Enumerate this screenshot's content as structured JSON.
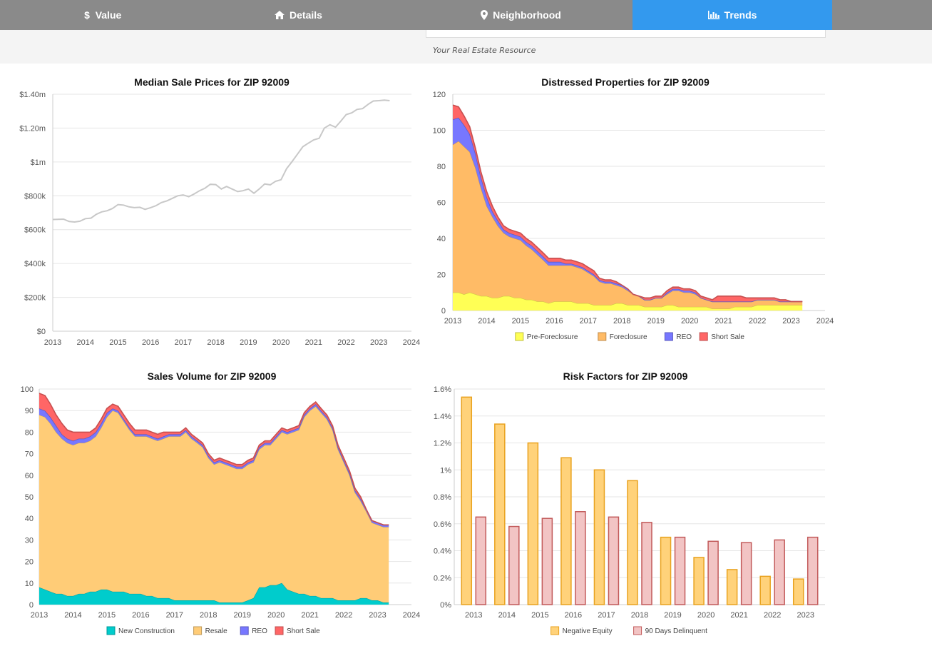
{
  "nav": {
    "tabs": [
      {
        "label": "Value",
        "icon": "dollar-icon"
      },
      {
        "label": "Details",
        "icon": "home-icon"
      },
      {
        "label": "Neighborhood",
        "icon": "map-pin-icon"
      },
      {
        "label": "Trends",
        "icon": "bar-chart-icon",
        "active": true
      }
    ]
  },
  "header": {
    "tagline": "Your Real Estate Resource"
  },
  "colors": {
    "tab_bar": "#8a8a8a",
    "tab_active": "#3399ee",
    "new_construction": "#00cccc",
    "resale": "#ffcc77",
    "reo": "#3333ee",
    "short_sale": "#ee1111",
    "pre_foreclosure": "#ffff55",
    "foreclosure": "#ffbb66",
    "negative_equity": "#ffd27a",
    "delinquent": "#f2c4c4"
  },
  "chart_data": [
    {
      "id": "median",
      "type": "line",
      "title": "Median Sale Prices for ZIP 92009",
      "xlabels": [
        "2013",
        "2014",
        "2015",
        "2016",
        "2017",
        "2018",
        "2019",
        "2020",
        "2021",
        "2022",
        "2023",
        "2024"
      ],
      "ylabels": [
        "$0",
        "$200k",
        "$400k",
        "$600k",
        "$800k",
        "$1m",
        "$1.20m",
        "$1.40m"
      ],
      "xlim": [
        2013,
        2024
      ],
      "ylim": [
        0,
        1400000
      ],
      "grid": true,
      "series": [
        {
          "color": "#c8c8c8",
          "x": [
            2013.0,
            2013.33,
            2013.5,
            2013.67,
            2013.83,
            2014.0,
            2014.17,
            2014.33,
            2014.5,
            2014.67,
            2014.83,
            2015.0,
            2015.17,
            2015.33,
            2015.5,
            2015.67,
            2015.83,
            2016.0,
            2016.17,
            2016.33,
            2016.5,
            2016.67,
            2016.83,
            2017.0,
            2017.17,
            2017.33,
            2017.5,
            2017.67,
            2017.83,
            2018.0,
            2018.17,
            2018.33,
            2018.5,
            2018.67,
            2018.83,
            2019.0,
            2019.17,
            2019.33,
            2019.5,
            2019.67,
            2019.83,
            2020.0,
            2020.17,
            2020.33,
            2020.5,
            2020.67,
            2020.83,
            2021.0,
            2021.17,
            2021.33,
            2021.5,
            2021.67,
            2021.83,
            2022.0,
            2022.17,
            2022.33,
            2022.5,
            2022.67,
            2022.83,
            2023.0,
            2023.17,
            2023.33
          ],
          "y": [
            660000,
            662000,
            648000,
            645000,
            650000,
            665000,
            668000,
            690000,
            705000,
            712000,
            725000,
            748000,
            745000,
            735000,
            730000,
            732000,
            720000,
            730000,
            742000,
            760000,
            770000,
            785000,
            800000,
            805000,
            795000,
            810000,
            830000,
            845000,
            868000,
            866000,
            840000,
            855000,
            840000,
            825000,
            830000,
            840000,
            815000,
            840000,
            870000,
            865000,
            885000,
            895000,
            960000,
            1000000,
            1045000,
            1090000,
            1110000,
            1130000,
            1140000,
            1200000,
            1220000,
            1205000,
            1240000,
            1280000,
            1290000,
            1310000,
            1315000,
            1340000,
            1360000,
            1362000,
            1365000,
            1362000
          ]
        }
      ]
    },
    {
      "id": "distressed",
      "type": "area",
      "title": "Distressed Properties for ZIP 92009",
      "xlabels": [
        "2013",
        "2014",
        "2015",
        "2016",
        "2017",
        "2018",
        "2019",
        "2020",
        "2021",
        "2022",
        "2023",
        "2024"
      ],
      "ylabels": [
        "0",
        "20",
        "40",
        "60",
        "80",
        "100",
        "120"
      ],
      "xlim": [
        2013,
        2024
      ],
      "ylim": [
        0,
        120
      ],
      "grid": true,
      "legend": "bottom",
      "x": [
        2013.0,
        2013.17,
        2013.33,
        2013.5,
        2013.67,
        2013.83,
        2014.0,
        2014.17,
        2014.33,
        2014.5,
        2014.67,
        2014.83,
        2015.0,
        2015.17,
        2015.33,
        2015.5,
        2015.67,
        2015.83,
        2016.0,
        2016.17,
        2016.33,
        2016.5,
        2016.67,
        2016.83,
        2017.0,
        2017.17,
        2017.33,
        2017.5,
        2017.67,
        2017.83,
        2018.0,
        2018.17,
        2018.33,
        2018.5,
        2018.67,
        2018.83,
        2019.0,
        2019.17,
        2019.33,
        2019.5,
        2019.67,
        2019.83,
        2020.0,
        2020.17,
        2020.33,
        2020.5,
        2020.67,
        2020.83,
        2021.0,
        2021.17,
        2021.33,
        2021.5,
        2021.67,
        2021.83,
        2022.0,
        2022.17,
        2022.33,
        2022.5,
        2022.67,
        2022.83,
        2023.0,
        2023.17,
        2023.33
      ],
      "series": [
        {
          "name": "Pre-Foreclosure",
          "color": "#ffff55",
          "values": [
            10,
            10,
            9,
            10,
            9,
            8,
            8,
            7,
            7,
            8,
            8,
            7,
            7,
            6,
            6,
            5,
            5,
            4,
            5,
            5,
            5,
            5,
            4,
            4,
            4,
            3,
            3,
            3,
            3,
            4,
            4,
            3,
            3,
            3,
            2,
            2,
            2,
            2,
            3,
            3,
            2,
            2,
            2,
            2,
            2,
            2,
            1,
            1,
            1,
            1,
            2,
            2,
            2,
            2,
            3,
            3,
            3,
            3,
            3,
            3,
            3,
            3,
            3
          ]
        },
        {
          "name": "Foreclosure",
          "color": "#ffbb66",
          "values": [
            82,
            84,
            82,
            78,
            70,
            60,
            50,
            45,
            40,
            35,
            33,
            33,
            32,
            30,
            28,
            26,
            23,
            21,
            20,
            20,
            20,
            20,
            20,
            19,
            17,
            16,
            13,
            12,
            12,
            10,
            9,
            8,
            6,
            5,
            4,
            4,
            5,
            5,
            6,
            8,
            9,
            8,
            8,
            7,
            5,
            4,
            4,
            4,
            4,
            4,
            3,
            3,
            3,
            3,
            3,
            3,
            3,
            3,
            2,
            2,
            2,
            2,
            2
          ]
        },
        {
          "name": "REO",
          "color": "#7777ff",
          "values": [
            14,
            13,
            12,
            10,
            8,
            6,
            5,
            3,
            3,
            2,
            2,
            2,
            2,
            2,
            2,
            2,
            2,
            2,
            2,
            2,
            1,
            1,
            1,
            1,
            1,
            1,
            1,
            1,
            1,
            1,
            1,
            1,
            0,
            0,
            0,
            0,
            0,
            0,
            1,
            1,
            1,
            1,
            1,
            1,
            0,
            0,
            0,
            0,
            0,
            0,
            0,
            0,
            0,
            0,
            0,
            0,
            0,
            0,
            0,
            0,
            0,
            0,
            0
          ]
        },
        {
          "name": "Short Sale",
          "color": "#ff6666",
          "values": [
            8,
            6,
            5,
            4,
            3,
            3,
            3,
            3,
            2,
            2,
            2,
            2,
            2,
            2,
            2,
            2,
            2,
            2,
            2,
            2,
            2,
            2,
            2,
            2,
            2,
            2,
            1,
            1,
            1,
            1,
            0,
            0,
            0,
            0,
            1,
            1,
            1,
            1,
            1,
            1,
            1,
            1,
            1,
            1,
            1,
            1,
            1,
            3,
            3,
            3,
            3,
            3,
            2,
            2,
            1,
            1,
            1,
            1,
            1,
            1,
            0,
            0,
            0
          ]
        }
      ]
    },
    {
      "id": "volume",
      "type": "area",
      "title": "Sales Volume for ZIP 92009",
      "xlabels": [
        "2013",
        "2014",
        "2015",
        "2016",
        "2017",
        "2018",
        "2019",
        "2020",
        "2021",
        "2022",
        "2023",
        "2024"
      ],
      "ylabels": [
        "0",
        "10",
        "20",
        "30",
        "40",
        "50",
        "60",
        "70",
        "80",
        "90",
        "100"
      ],
      "xlim": [
        2013,
        2024
      ],
      "ylim": [
        0,
        100
      ],
      "grid": true,
      "legend": "bottom",
      "x": [
        2013.0,
        2013.17,
        2013.33,
        2013.5,
        2013.67,
        2013.83,
        2014.0,
        2014.17,
        2014.33,
        2014.5,
        2014.67,
        2014.83,
        2015.0,
        2015.17,
        2015.33,
        2015.5,
        2015.67,
        2015.83,
        2016.0,
        2016.17,
        2016.33,
        2016.5,
        2016.67,
        2016.83,
        2017.0,
        2017.17,
        2017.33,
        2017.5,
        2017.67,
        2017.83,
        2018.0,
        2018.17,
        2018.33,
        2018.5,
        2018.67,
        2018.83,
        2019.0,
        2019.17,
        2019.33,
        2019.5,
        2019.67,
        2019.83,
        2020.0,
        2020.17,
        2020.33,
        2020.5,
        2020.67,
        2020.83,
        2021.0,
        2021.17,
        2021.33,
        2021.5,
        2021.67,
        2021.83,
        2022.0,
        2022.17,
        2022.33,
        2022.5,
        2022.67,
        2022.83,
        2023.0,
        2023.17,
        2023.33
      ],
      "series": [
        {
          "name": "New Construction",
          "color": "#00cccc",
          "values": [
            8,
            7,
            6,
            5,
            5,
            4,
            4,
            5,
            5,
            6,
            6,
            7,
            7,
            6,
            6,
            6,
            5,
            5,
            5,
            4,
            4,
            3,
            3,
            3,
            2,
            2,
            2,
            2,
            2,
            2,
            2,
            2,
            1,
            1,
            1,
            1,
            1,
            2,
            3,
            8,
            8,
            9,
            9,
            10,
            7,
            6,
            5,
            5,
            4,
            4,
            3,
            3,
            3,
            2,
            2,
            2,
            2,
            3,
            3,
            2,
            2,
            1,
            1
          ]
        },
        {
          "name": "Resale",
          "color": "#ffcc77",
          "values": [
            80,
            80,
            78,
            75,
            72,
            71,
            70,
            70,
            70,
            70,
            72,
            75,
            80,
            84,
            83,
            79,
            76,
            73,
            73,
            74,
            73,
            73,
            74,
            75,
            76,
            76,
            78,
            75,
            73,
            71,
            66,
            63,
            65,
            64,
            63,
            62,
            62,
            63,
            63,
            64,
            66,
            65,
            68,
            70,
            72,
            74,
            76,
            82,
            86,
            88,
            86,
            83,
            78,
            70,
            64,
            58,
            50,
            45,
            40,
            36,
            35,
            35,
            35
          ]
        },
        {
          "name": "REO",
          "color": "#7777ff",
          "values": [
            3,
            3,
            3,
            3,
            2,
            2,
            2,
            2,
            2,
            2,
            2,
            2,
            2,
            1,
            1,
            1,
            1,
            1,
            1,
            1,
            1,
            1,
            1,
            1,
            1,
            1,
            1,
            1,
            1,
            1,
            1,
            1,
            1,
            1,
            1,
            1,
            1,
            1,
            1,
            1,
            1,
            1,
            1,
            1,
            1,
            1,
            1,
            1,
            1,
            1,
            1,
            1,
            1,
            1,
            1,
            1,
            1,
            1,
            1,
            1,
            1,
            1,
            1
          ]
        },
        {
          "name": "Short Sale",
          "color": "#ff6666",
          "values": [
            7,
            7,
            6,
            5,
            5,
            4,
            4,
            3,
            3,
            2,
            2,
            2,
            2,
            2,
            2,
            2,
            2,
            2,
            2,
            2,
            2,
            2,
            2,
            1,
            1,
            1,
            1,
            1,
            1,
            1,
            1,
            1,
            1,
            1,
            1,
            1,
            1,
            1,
            1,
            1,
            1,
            1,
            1,
            1,
            1,
            1,
            1,
            1,
            1,
            1,
            1,
            1,
            1,
            1,
            1,
            1,
            1,
            1,
            0,
            0,
            0,
            0,
            0
          ]
        }
      ]
    },
    {
      "id": "risk",
      "type": "bar",
      "title": "Risk Factors for ZIP 92009",
      "categories": [
        "2013",
        "2014",
        "2015",
        "2016",
        "2017",
        "2018",
        "2019",
        "2020",
        "2021",
        "2022",
        "2023"
      ],
      "ylabels": [
        "0%",
        "0.2%",
        "0.4%",
        "0.6%",
        "0.8%",
        "1%",
        "1.2%",
        "1.4%",
        "1.6%"
      ],
      "ylim": [
        0,
        1.6
      ],
      "grid": true,
      "legend": "bottom",
      "series": [
        {
          "name": "Negative Equity",
          "color": "#ffd27a",
          "stroke": "#e9a21f",
          "values": [
            1.54,
            1.34,
            1.2,
            1.09,
            1.0,
            0.92,
            0.5,
            0.35,
            0.26,
            0.21,
            0.19
          ]
        },
        {
          "name": "90 Days Delinquent",
          "color": "#f2c4c4",
          "stroke": "#c25a5a",
          "values": [
            0.65,
            0.58,
            0.64,
            0.69,
            0.65,
            0.61,
            0.5,
            0.47,
            0.46,
            0.48,
            0.5
          ]
        }
      ]
    }
  ]
}
